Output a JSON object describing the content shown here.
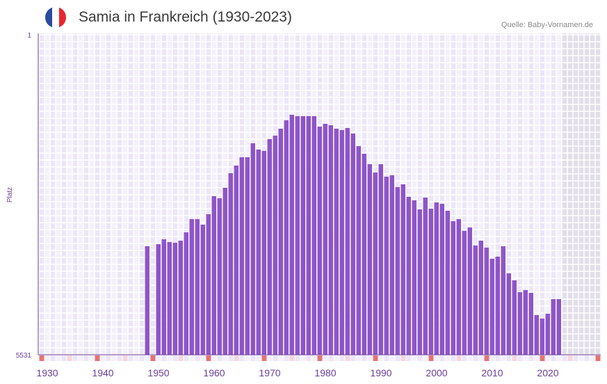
{
  "header": {
    "title": "Samia in Frankreich (1930-2023)",
    "source": "Quelle: Baby-Vornamen.de",
    "flag_colors": [
      "#2b4aa0",
      "#ffffff",
      "#e8262e"
    ]
  },
  "colors": {
    "bar": "#8e55c8",
    "axis": "#6a3d9a",
    "decade_marker": "#e57373",
    "half_decade_marker": "#f5d6de",
    "future_shade": "#e2dfea"
  },
  "chart_data": {
    "type": "bar",
    "title": "Samia in Frankreich (1930-2023)",
    "xlabel": "",
    "ylabel": "Platz",
    "ylim": [
      5531,
      1
    ],
    "y_ticks": [
      "1",
      "5531"
    ],
    "xlim": [
      1928,
      2028
    ],
    "x_ticks": [
      1930,
      1940,
      1950,
      1960,
      1970,
      1980,
      1990,
      2000,
      2010,
      2020
    ],
    "shaded_from_year": 2022,
    "grid": true,
    "years": [
      1947,
      1948,
      1949,
      1950,
      1951,
      1952,
      1953,
      1954,
      1955,
      1956,
      1957,
      1958,
      1959,
      1960,
      1961,
      1962,
      1963,
      1964,
      1965,
      1966,
      1967,
      1968,
      1969,
      1970,
      1971,
      1972,
      1973,
      1974,
      1975,
      1976,
      1977,
      1978,
      1979,
      1980,
      1981,
      1982,
      1983,
      1984,
      1985,
      1986,
      1987,
      1988,
      1989,
      1990,
      1991,
      1992,
      1993,
      1994,
      1995,
      1996,
      1997,
      1998,
      1999,
      2000,
      2001,
      2002,
      2003,
      2004,
      2005,
      2006,
      2007,
      2008,
      2009,
      2010,
      2011,
      2012,
      2013,
      2014,
      2015,
      2016,
      2017,
      2018,
      2019,
      2020,
      2021
    ],
    "ranks": [
      3655,
      null,
      3619,
      3535,
      3583,
      3595,
      3559,
      3415,
      3186,
      3186,
      3282,
      3102,
      2790,
      2826,
      2645,
      2393,
      2261,
      2117,
      2117,
      1876,
      1984,
      2008,
      1804,
      1744,
      1624,
      1479,
      1383,
      1407,
      1407,
      1407,
      1407,
      1588,
      1540,
      1564,
      1624,
      1648,
      1612,
      1708,
      1924,
      2056,
      2237,
      2381,
      2237,
      2453,
      2429,
      2633,
      2585,
      2802,
      2862,
      3018,
      2814,
      3006,
      2898,
      2922,
      3042,
      3222,
      3186,
      3390,
      3330,
      3643,
      3559,
      3679,
      3871,
      3835,
      3655,
      4124,
      4244,
      4448,
      4412,
      4460,
      4845,
      4905,
      4821,
      4569,
      4569
    ]
  }
}
